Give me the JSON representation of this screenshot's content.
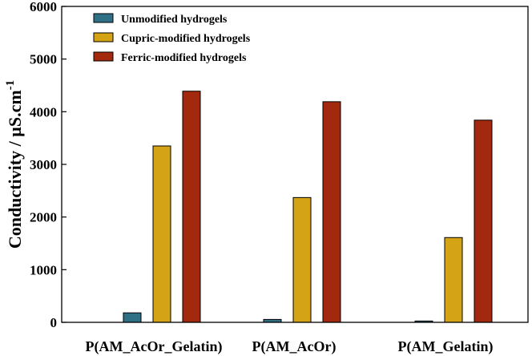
{
  "chart_data": {
    "type": "bar",
    "title": "",
    "xlabel": "",
    "ylabel": "Conductivity / µS.cm",
    "ylabel_superscript": "-1",
    "ylim": [
      0,
      6000
    ],
    "yticks": [
      0,
      1000,
      2000,
      3000,
      4000,
      5000,
      6000
    ],
    "categories": [
      "P(AM_AcOr_Gelatin)",
      "P(AM_AcOr)",
      "P(AM_Gelatin)"
    ],
    "series": [
      {
        "name": "Unmodified hydrogels",
        "color": "#2f7086",
        "values": [
          180,
          55,
          25
        ]
      },
      {
        "name": "Cupric-modified hydrogels",
        "color": "#d4a416",
        "values": [
          3350,
          2370,
          1610
        ]
      },
      {
        "name": "Ferric-modified hydrogels",
        "color": "#a2290d",
        "values": [
          4390,
          4190,
          3840
        ]
      }
    ],
    "legend_position": "top-left",
    "grid": false
  }
}
